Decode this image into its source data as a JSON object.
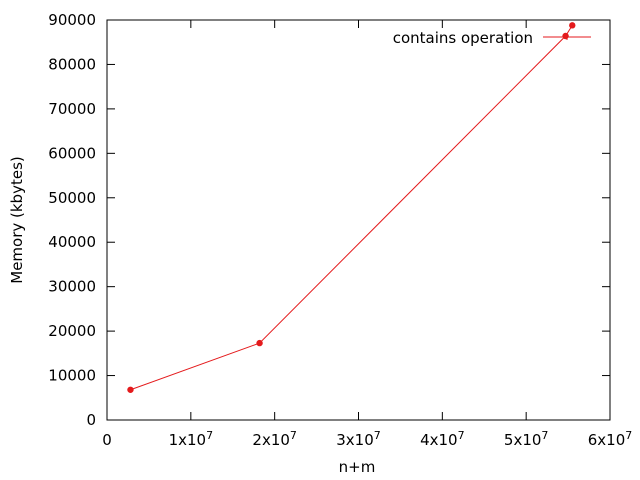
{
  "chart_data": {
    "type": "line",
    "xlabel": "n+m",
    "ylabel": "Memory (kbytes)",
    "xlim": [
      0,
      60000000
    ],
    "ylim": [
      0,
      90000
    ],
    "x_ticks": [
      {
        "value": 0,
        "base": "0",
        "exp": ""
      },
      {
        "value": 10000000,
        "base": "1x10",
        "exp": "7"
      },
      {
        "value": 20000000,
        "base": "2x10",
        "exp": "7"
      },
      {
        "value": 30000000,
        "base": "3x10",
        "exp": "7"
      },
      {
        "value": 40000000,
        "base": "4x10",
        "exp": "7"
      },
      {
        "value": 50000000,
        "base": "5x10",
        "exp": "7"
      },
      {
        "value": 60000000,
        "base": "6x10",
        "exp": "7"
      }
    ],
    "y_ticks": [
      {
        "value": 0,
        "label": "0"
      },
      {
        "value": 10000,
        "label": "10000"
      },
      {
        "value": 20000,
        "label": "20000"
      },
      {
        "value": 30000,
        "label": "30000"
      },
      {
        "value": 40000,
        "label": "40000"
      },
      {
        "value": 50000,
        "label": "50000"
      },
      {
        "value": 60000,
        "label": "60000"
      },
      {
        "value": 70000,
        "label": "70000"
      },
      {
        "value": 80000,
        "label": "80000"
      },
      {
        "value": 90000,
        "label": "90000"
      }
    ],
    "grid": false,
    "legend_position": "top-right",
    "series": [
      {
        "name": "contains operation",
        "color": "#e41a1c",
        "points": [
          {
            "x": 2800000,
            "y": 6800
          },
          {
            "x": 18200000,
            "y": 17300
          },
          {
            "x": 54700000,
            "y": 86400
          },
          {
            "x": 55500000,
            "y": 88800
          }
        ]
      }
    ]
  }
}
